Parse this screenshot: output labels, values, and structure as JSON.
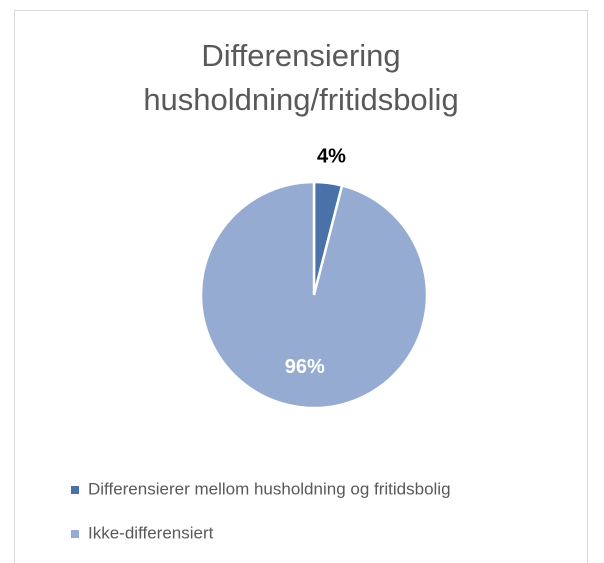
{
  "chart_data": {
    "type": "pie",
    "title": "Differensiering husholdning/fritidsbolig",
    "categories": [
      "Differensierer mellom husholdning og fritidsbolig",
      "Ikke-differensiert"
    ],
    "values": [
      4,
      96
    ],
    "value_labels": [
      "4%",
      "96%"
    ],
    "colors": [
      "#4a72a8",
      "#95abd1"
    ],
    "legend": "bottom"
  }
}
